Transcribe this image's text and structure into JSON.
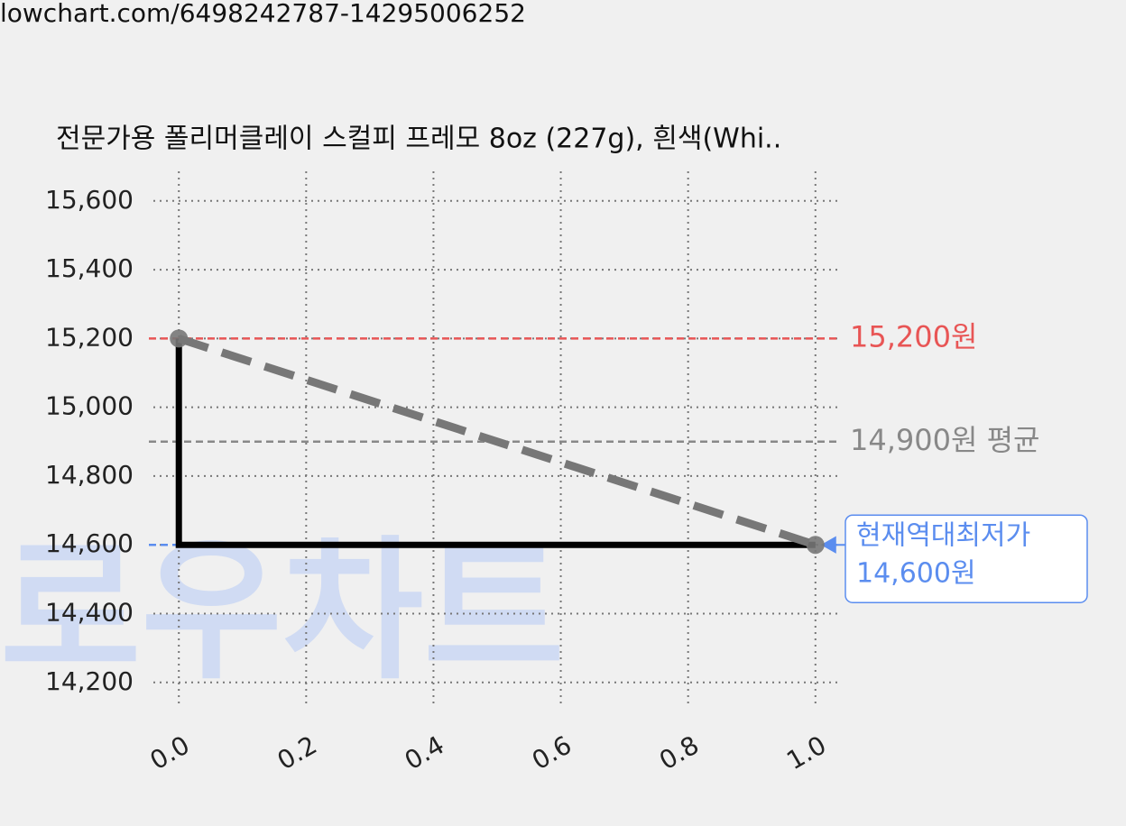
{
  "url": "lowchart.com/6498242787-14295006252",
  "watermark": "로우차트",
  "chart_data": {
    "type": "line",
    "title": "전문가용 폴리머클레이 스컬피 프레모 8oz (227g), 흰색(Whi..",
    "x": [
      0,
      1
    ],
    "series": [
      {
        "color": "#000000",
        "values": [
          15200,
          14600
        ],
        "step": "pre",
        "style": "solid"
      },
      {
        "color": "#777777",
        "values": [
          15200,
          14600
        ],
        "style": "dashed",
        "markers": true
      }
    ],
    "xlim": [
      -0.04,
      1.04
    ],
    "ylim": [
      14126,
      15686
    ],
    "xticks": [
      {
        "value": 0,
        "label": "0.0"
      },
      0.2,
      0.4,
      0.6,
      0.8,
      {
        "value": 1,
        "label": "1.0"
      }
    ],
    "yticks": [
      {
        "value": 14200,
        "label": "14,200"
      },
      {
        "value": 14400,
        "label": "14,400"
      },
      {
        "value": 14600,
        "label": "14,600"
      },
      {
        "value": 14800,
        "label": "14,800"
      },
      {
        "value": 15000,
        "label": "15,000"
      },
      {
        "value": 15200,
        "label": "15,200"
      },
      {
        "value": 15400,
        "label": "15,400"
      },
      {
        "value": 15600,
        "label": "15,600"
      }
    ],
    "grid": true,
    "reference_lines": [
      {
        "value": 15200,
        "label": "15,200원",
        "color": "#e85555"
      },
      {
        "value": 14900,
        "label": "14,900원 평균",
        "color": "#888888"
      },
      {
        "value": 14600,
        "label": "14,600원",
        "note": "현재역대최저가",
        "color": "#5b8def"
      }
    ]
  }
}
